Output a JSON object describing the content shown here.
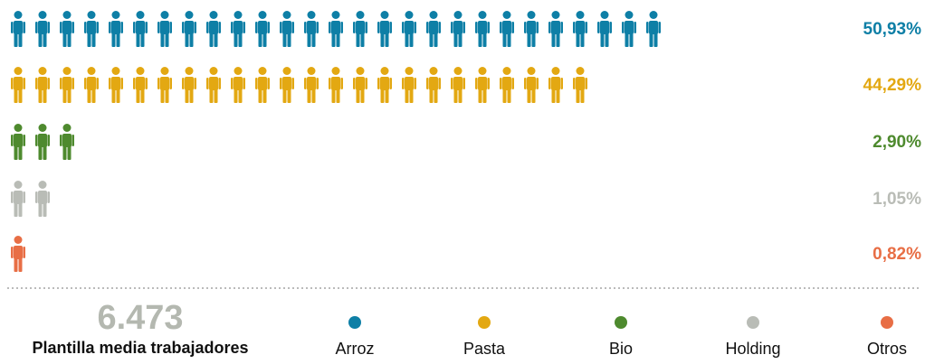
{
  "chart_data": {
    "type": "pictogram",
    "series": [
      {
        "name": "Arroz",
        "color": "#0e7fa6",
        "values": [
          50.93
        ],
        "value_labels": [
          "50,93%"
        ],
        "icons": 27
      },
      {
        "name": "Pasta",
        "color": "#e3a812",
        "values": [
          44.29
        ],
        "value_labels": [
          "44,29%"
        ],
        "icons": 24
      },
      {
        "name": "Bio",
        "color": "#4e8a2e",
        "values": [
          2.9
        ],
        "value_labels": [
          "2,90%"
        ],
        "icons": 3
      },
      {
        "name": "Holding",
        "color": "#b9bcb6",
        "values": [
          1.05
        ],
        "value_labels": [
          "1,05%"
        ],
        "icons": 2
      },
      {
        "name": "Otros",
        "color": "#e86e45",
        "values": [
          0.82
        ],
        "value_labels": [
          "0,82%"
        ],
        "icons": 1
      }
    ],
    "total": {
      "value": 6473,
      "label": "6.473"
    },
    "total_caption": "Plantilla media trabajadores"
  }
}
